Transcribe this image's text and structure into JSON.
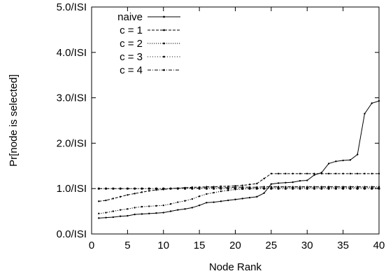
{
  "chart_data": {
    "type": "line",
    "xlabel": "Node Rank",
    "ylabel": "Pr[node is selected]",
    "xlim": [
      0,
      40
    ],
    "ylim": [
      0,
      5
    ],
    "xticks": [
      0,
      5,
      10,
      15,
      20,
      25,
      30,
      35,
      40
    ],
    "xtick_labels": [
      "0",
      "5",
      "10",
      "15",
      "20",
      "25",
      "30",
      "35",
      "40"
    ],
    "yticks": [
      0,
      1,
      2,
      3,
      4,
      5
    ],
    "ytick_labels": [
      "0.0/ISI",
      "1.0/ISI",
      "2.0/ISI",
      "3.0/ISI",
      "4.0/ISI",
      "5.0/ISI"
    ],
    "grid": false,
    "legend_position": "top-left",
    "x": [
      1,
      2,
      3,
      4,
      5,
      6,
      7,
      8,
      9,
      10,
      11,
      12,
      13,
      14,
      15,
      16,
      17,
      18,
      19,
      20,
      21,
      22,
      23,
      24,
      25,
      26,
      27,
      28,
      29,
      30,
      31,
      32,
      33,
      34,
      35,
      36,
      37,
      38,
      39,
      40
    ],
    "series": [
      {
        "name": "naive",
        "dash": "solid",
        "values": [
          0.35,
          0.36,
          0.37,
          0.39,
          0.4,
          0.43,
          0.44,
          0.45,
          0.46,
          0.47,
          0.5,
          0.53,
          0.55,
          0.58,
          0.63,
          0.69,
          0.7,
          0.72,
          0.74,
          0.76,
          0.78,
          0.8,
          0.82,
          0.9,
          1.1,
          1.12,
          1.13,
          1.14,
          1.17,
          1.18,
          1.3,
          1.35,
          1.55,
          1.6,
          1.62,
          1.63,
          1.75,
          2.65,
          2.88,
          2.93
        ]
      },
      {
        "name": "c = 1",
        "dash": "dashed",
        "values": [
          0.72,
          0.74,
          0.78,
          0.82,
          0.86,
          0.89,
          0.92,
          0.95,
          0.97,
          0.98,
          1.0,
          1.01,
          1.02,
          1.03,
          1.03,
          1.04,
          1.04,
          1.05,
          1.05,
          1.06,
          1.07,
          1.09,
          1.11,
          1.22,
          1.33,
          1.33,
          1.33,
          1.33,
          1.33,
          1.33,
          1.33,
          1.33,
          1.33,
          1.33,
          1.33,
          1.33,
          1.33,
          1.33,
          1.33,
          1.33
        ]
      },
      {
        "name": "c = 2",
        "dash": "dotted",
        "values": [
          0.45,
          0.47,
          0.5,
          0.53,
          0.55,
          0.58,
          0.6,
          0.61,
          0.62,
          0.63,
          0.66,
          0.7,
          0.73,
          0.77,
          0.83,
          0.88,
          0.91,
          0.94,
          0.96,
          0.98,
          0.99,
          1.0,
          1.0,
          1.01,
          1.02,
          1.02,
          1.02,
          1.02,
          1.02,
          1.02,
          1.02,
          1.02,
          1.02,
          1.02,
          1.02,
          1.02,
          1.02,
          1.02,
          1.02,
          1.02
        ]
      },
      {
        "name": "c = 3",
        "dash": "dotted-fine",
        "values": [
          1.0,
          1.0,
          1.0,
          1.0,
          1.0,
          1.0,
          1.0,
          1.0,
          1.0,
          1.0,
          1.0,
          1.0,
          1.0,
          1.0,
          1.0,
          1.0,
          1.0,
          1.0,
          1.0,
          1.0,
          1.0,
          1.0,
          1.0,
          1.0,
          1.0,
          1.0,
          1.0,
          1.0,
          1.0,
          1.0,
          1.0,
          1.0,
          1.0,
          1.0,
          1.0,
          1.0,
          1.0,
          1.0,
          1.0,
          1.0
        ]
      },
      {
        "name": "c = 4",
        "dash": "dash-dot",
        "values": [
          1.0,
          1.0,
          1.0,
          1.0,
          1.0,
          1.0,
          1.0,
          1.0,
          1.0,
          1.0,
          1.0,
          1.01,
          1.01,
          1.01,
          1.01,
          1.02,
          1.02,
          1.02,
          1.02,
          1.03,
          1.03,
          1.03,
          1.03,
          1.04,
          1.04,
          1.04,
          1.04,
          1.04,
          1.04,
          1.04,
          1.04,
          1.04,
          1.04,
          1.04,
          1.04,
          1.04,
          1.04,
          1.04,
          1.04,
          1.04
        ]
      }
    ]
  }
}
